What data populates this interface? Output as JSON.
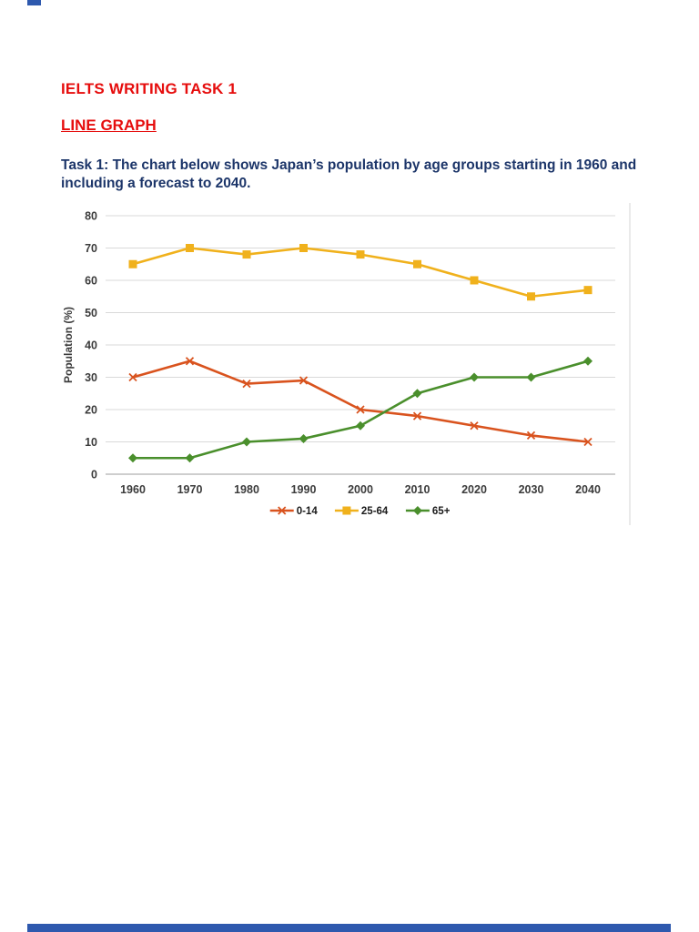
{
  "page": {
    "heading1": "IELTS WRITING TASK 1",
    "heading2": "LINE GRAPH",
    "task_text": "Task 1: The chart below shows Japan’s population by age groups starting in 1960 and including a forecast to 2040.",
    "accent_red": "#e60d0d",
    "accent_navy": "#1c3569",
    "edge_bar_color": "#2e59ae"
  },
  "chart_data": {
    "type": "line",
    "x": [
      1960,
      1970,
      1980,
      1990,
      2000,
      2010,
      2020,
      2030,
      2040
    ],
    "series": [
      {
        "name": "0-14",
        "color": "#d9531e",
        "marker": "x",
        "values": [
          30,
          35,
          28,
          29,
          20,
          18,
          15,
          12,
          10
        ]
      },
      {
        "name": "25-64",
        "color": "#f0b11c",
        "marker": "square",
        "values": [
          65,
          70,
          68,
          70,
          68,
          65,
          60,
          55,
          57
        ]
      },
      {
        "name": "65+",
        "color": "#4a8f2c",
        "marker": "diamond",
        "values": [
          5,
          5,
          10,
          11,
          15,
          25,
          30,
          30,
          35
        ]
      }
    ],
    "title": "",
    "xlabel": "",
    "ylabel": "Population (%)",
    "ylim": [
      0,
      80
    ],
    "ytick_step": 10,
    "grid": true,
    "legend_position": "bottom"
  }
}
